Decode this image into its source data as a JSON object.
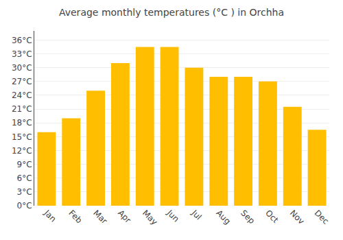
{
  "chart_data": {
    "type": "bar",
    "title": "Average monthly temperatures (°C ) in Orchha",
    "categories": [
      "Jan",
      "Feb",
      "Mar",
      "Apr",
      "May",
      "Jun",
      "Jul",
      "Aug",
      "Sep",
      "Oct",
      "Nov",
      "Dec"
    ],
    "values": [
      16,
      19,
      25,
      31,
      34.5,
      34.5,
      30,
      28,
      28,
      27,
      21.5,
      16.5
    ],
    "color": "#FFBF00",
    "ylim": [
      0,
      38
    ],
    "yticks": [
      {
        "value": 0,
        "label": "0°C"
      },
      {
        "value": 3,
        "label": "3°C"
      },
      {
        "value": 6,
        "label": "6°C"
      },
      {
        "value": 9,
        "label": "9°C"
      },
      {
        "value": 12,
        "label": "12°C"
      },
      {
        "value": 15,
        "label": "15°C"
      },
      {
        "value": 18,
        "label": "18°C"
      },
      {
        "value": 21,
        "label": "21°C"
      },
      {
        "value": 24,
        "label": "24°C"
      },
      {
        "value": 27,
        "label": "27°C"
      },
      {
        "value": 30,
        "label": "30°C"
      },
      {
        "value": 33,
        "label": "33°C"
      },
      {
        "value": 36,
        "label": "36°C"
      }
    ],
    "grid": true
  }
}
